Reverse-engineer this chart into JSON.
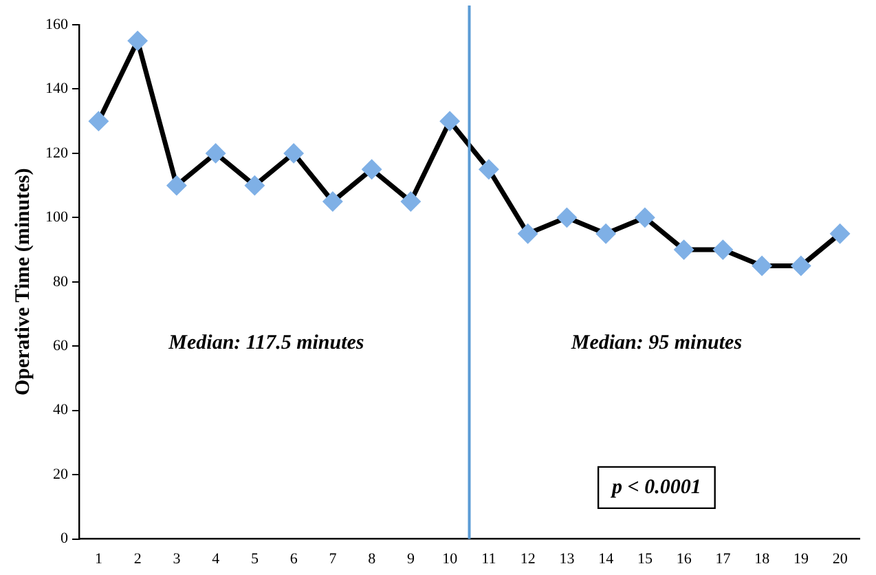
{
  "chart_data": {
    "type": "line",
    "ylabel": "Operative Time (minutes)",
    "x": [
      1,
      2,
      3,
      4,
      5,
      6,
      7,
      8,
      9,
      10,
      11,
      12,
      13,
      14,
      15,
      16,
      17,
      18,
      19,
      20
    ],
    "series": [
      {
        "color": "#000000",
        "values": [
          130,
          155,
          110,
          120,
          110,
          120,
          105,
          115,
          105,
          130,
          115,
          95,
          100,
          95,
          100,
          90,
          90,
          85,
          85,
          95
        ]
      }
    ],
    "xlim": [
      0.5,
      20.5
    ],
    "xticks": [
      1,
      2,
      3,
      4,
      5,
      6,
      7,
      8,
      9,
      10,
      11,
      12,
      13,
      14,
      15,
      16,
      17,
      18,
      19,
      20
    ],
    "ylim": [
      0,
      160
    ],
    "yticks": [
      0,
      20,
      40,
      60,
      80,
      100,
      120,
      140,
      160
    ],
    "ref_lines": [
      {
        "axis": "x",
        "value": 10.5,
        "color": "#5b9bd5"
      }
    ],
    "annotations": [
      "Median: 117.5 minutes",
      "Median: 95 minutes",
      "p < 0.0001"
    ],
    "marker": "diamond",
    "grid": false,
    "legend": false
  }
}
